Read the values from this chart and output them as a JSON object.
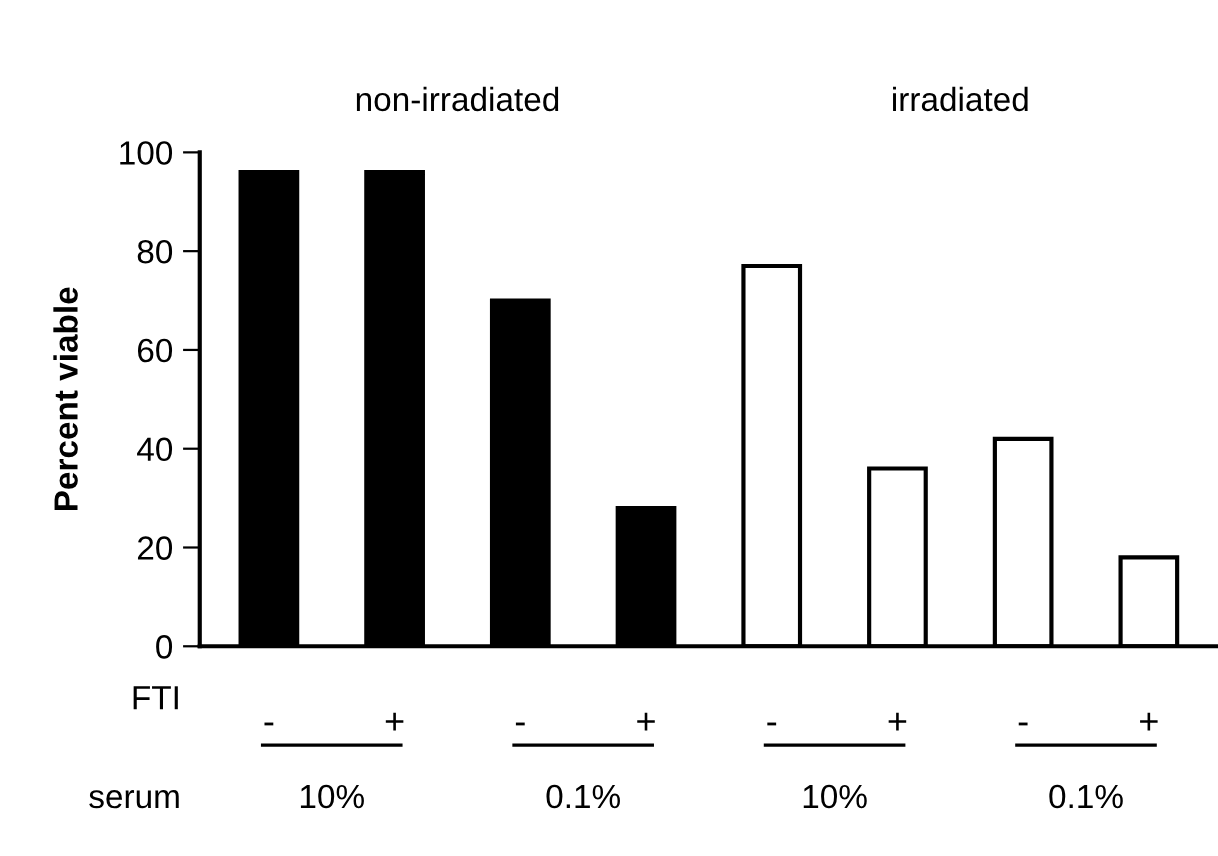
{
  "chart_data": {
    "type": "bar",
    "ylabel": "Percent viable",
    "categories": [
      "-",
      "+",
      "-",
      "+",
      "-",
      "+",
      "-",
      "+"
    ],
    "values": [
      96,
      96,
      70,
      28,
      77,
      36,
      42,
      18
    ],
    "colors": [
      "#000000",
      "#000000",
      "#000000",
      "#000000",
      "#ffffff",
      "#ffffff",
      "#ffffff",
      "#ffffff"
    ],
    "ylim": [
      0,
      100
    ],
    "yticks": [
      0,
      20,
      40,
      60,
      80,
      100
    ],
    "grid": false,
    "annotations": [
      "non-irradiated",
      "irradiated",
      "FTI",
      "serum",
      "10%",
      "0.1%",
      "10%",
      "0.1%"
    ]
  }
}
